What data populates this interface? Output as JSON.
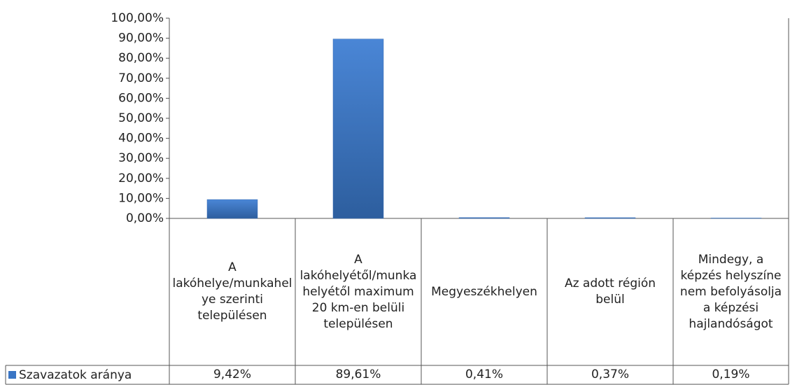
{
  "chart_data": {
    "type": "bar",
    "categories": [
      "A lakóhelye/munkahelye szerinti településen",
      "A lakóhelyétől/munkahelyétől maximum 20 km-en belüli településen",
      "Megyeszékhelyen",
      "Az adott régión belül",
      "Mindegy, a képzés helyszíne nem befolyásolja a képzési hajlandóságot"
    ],
    "series": [
      {
        "name": "Szavazatok aránya",
        "color": "#3a75c4",
        "values": [
          9.42,
          89.61,
          0.41,
          0.37,
          0.19
        ],
        "value_labels": [
          "9,42%",
          "89,61%",
          "0,41%",
          "0,37%",
          "0,19%"
        ]
      }
    ],
    "ylim": [
      0,
      100
    ],
    "yticks": [
      {
        "value": 0,
        "label": "0,00%"
      },
      {
        "value": 10,
        "label": "10,00%"
      },
      {
        "value": 20,
        "label": "20,00%"
      },
      {
        "value": 30,
        "label": "30,00%"
      },
      {
        "value": 40,
        "label": "40,00%"
      },
      {
        "value": 50,
        "label": "50,00%"
      },
      {
        "value": 60,
        "label": "60,00%"
      },
      {
        "value": 70,
        "label": "70,00%"
      },
      {
        "value": 80,
        "label": "80,00%"
      },
      {
        "value": 90,
        "label": "90,00%"
      },
      {
        "value": 100,
        "label": "100,00%"
      }
    ],
    "grid": false
  }
}
